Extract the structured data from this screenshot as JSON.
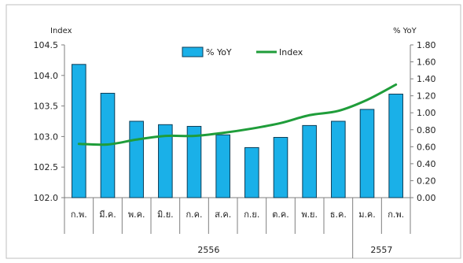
{
  "chart_data": {
    "type": "bar",
    "categories": [
      "ก.พ.",
      "มี.ค.",
      "พ.ค.",
      "มิ.ย.",
      "ก.ค.",
      "ส.ค.",
      "ก.ย.",
      "ต.ค.",
      "พ.ย.",
      "ธ.ค.",
      "ม.ค.",
      "ก.พ."
    ],
    "year_groups": [
      {
        "label": "2556",
        "count": 10
      },
      {
        "label": "2557",
        "count": 2
      }
    ],
    "series": [
      {
        "name": "% YoY",
        "type": "bar",
        "axis": "right",
        "color": "#1ab0e8",
        "values": [
          1.57,
          1.23,
          0.9,
          0.86,
          0.84,
          0.74,
          0.59,
          0.71,
          0.85,
          0.9,
          1.04,
          1.22
        ]
      },
      {
        "name": "Index",
        "type": "line",
        "axis": "left",
        "color": "#1f9d3a",
        "values": [
          102.88,
          102.87,
          102.95,
          103.01,
          103.01,
          103.06,
          103.13,
          103.22,
          103.35,
          103.42,
          103.6,
          103.85
        ]
      }
    ],
    "left_axis": {
      "label": "Index",
      "ylim": [
        102.0,
        104.5
      ],
      "ticks": [
        "102.0",
        "102.5",
        "103.0",
        "103.5",
        "104.0",
        "104.5"
      ]
    },
    "right_axis": {
      "label": "% YoY",
      "ylim": [
        0.0,
        1.8
      ],
      "ticks": [
        "0.00",
        "0.20",
        "0.40",
        "0.60",
        "0.80",
        "1.00",
        "1.20",
        "1.40",
        "1.60",
        "1.80"
      ]
    },
    "legend": "top-center",
    "grid": false
  }
}
